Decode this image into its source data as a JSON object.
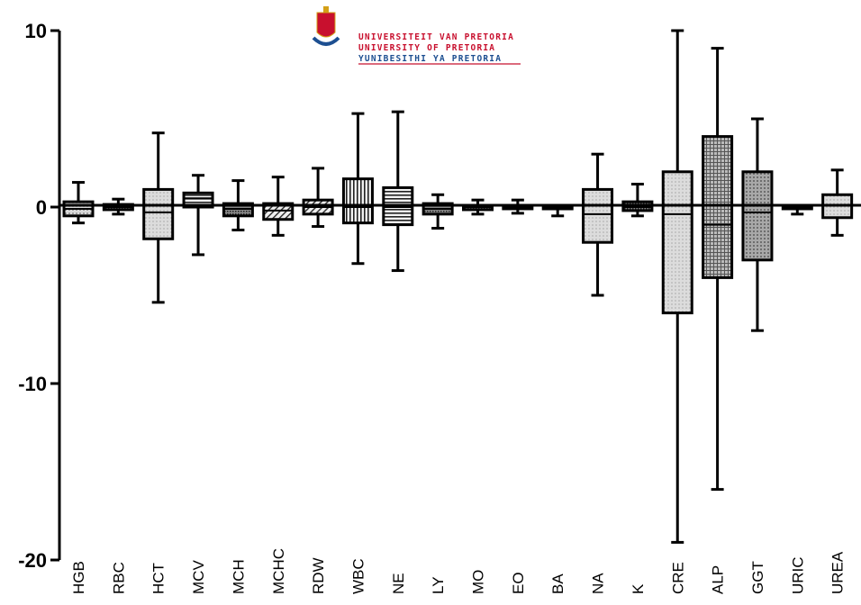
{
  "logo": {
    "lines": [
      "UNIVERSITEIT VAN PRETORIA",
      "UNIVERSITY OF PRETORIA",
      "YUNIBESITHI YA PRETORIA"
    ],
    "colors": {
      "red": "#c8102e",
      "blue": "#1d4f91",
      "gold": "#d4a017"
    }
  },
  "chart_data": {
    "type": "boxplot",
    "title": "",
    "xlabel": "",
    "ylabel": "",
    "ylim": [
      -20,
      10
    ],
    "yticks": [
      "10",
      "0",
      "-10",
      "-20"
    ],
    "categories": [
      "HGB",
      "RBC",
      "HCT",
      "MCV",
      "MCH",
      "MCHC",
      "RDW",
      "WBC",
      "NE",
      "LY",
      "MO",
      "EO",
      "BA",
      "NA",
      "K",
      "CRE",
      "ALP",
      "GGT",
      "URIC",
      "UREA"
    ],
    "boxes": [
      {
        "min": -0.9,
        "q1": -0.5,
        "median": -0.1,
        "q3": 0.3,
        "max": 1.4,
        "fill": "dots"
      },
      {
        "min": -0.4,
        "q1": -0.15,
        "median": 0.0,
        "q3": 0.15,
        "max": 0.45,
        "fill": "dense"
      },
      {
        "min": -5.4,
        "q1": -1.8,
        "median": -0.3,
        "q3": 1.0,
        "max": 4.2,
        "fill": "light-dots"
      },
      {
        "min": -2.7,
        "q1": 0.0,
        "median": 0.5,
        "q3": 0.8,
        "max": 1.8,
        "fill": "hstripes"
      },
      {
        "min": -1.3,
        "q1": -0.5,
        "median": -0.1,
        "q3": 0.2,
        "max": 1.5,
        "fill": "dense"
      },
      {
        "min": -1.6,
        "q1": -0.7,
        "median": -0.2,
        "q3": 0.2,
        "max": 1.7,
        "fill": "diagonal"
      },
      {
        "min": -1.1,
        "q1": -0.4,
        "median": 0.0,
        "q3": 0.4,
        "max": 2.2,
        "fill": "diagonal"
      },
      {
        "min": -3.2,
        "q1": -0.9,
        "median": 0.0,
        "q3": 1.6,
        "max": 5.3,
        "fill": "vstripes"
      },
      {
        "min": -3.6,
        "q1": -1.0,
        "median": 0.0,
        "q3": 1.1,
        "max": 5.4,
        "fill": "hstripes"
      },
      {
        "min": -1.2,
        "q1": -0.4,
        "median": -0.1,
        "q3": 0.2,
        "max": 0.7,
        "fill": "dense"
      },
      {
        "min": -0.4,
        "q1": -0.15,
        "median": 0.0,
        "q3": 0.1,
        "max": 0.4,
        "fill": "dense"
      },
      {
        "min": -0.35,
        "q1": -0.1,
        "median": 0.0,
        "q3": 0.1,
        "max": 0.4,
        "fill": "dense"
      },
      {
        "min": -0.5,
        "q1": -0.05,
        "median": 0.0,
        "q3": 0.0,
        "max": 0.0,
        "fill": "dense"
      },
      {
        "min": -5.0,
        "q1": -2.0,
        "median": -0.4,
        "q3": 1.0,
        "max": 3.0,
        "fill": "light-dots"
      },
      {
        "min": -0.5,
        "q1": -0.2,
        "median": 0.0,
        "q3": 0.3,
        "max": 1.3,
        "fill": "dense"
      },
      {
        "min": -19.0,
        "q1": -6.0,
        "median": -0.4,
        "q3": 2.0,
        "max": 10.0,
        "fill": "light-dots"
      },
      {
        "min": -16.0,
        "q1": -4.0,
        "median": -1.0,
        "q3": 4.0,
        "max": 9.0,
        "fill": "grid"
      },
      {
        "min": -7.0,
        "q1": -3.0,
        "median": -0.3,
        "q3": 2.0,
        "max": 5.0,
        "fill": "dark-dots"
      },
      {
        "min": -0.4,
        "q1": -0.1,
        "median": 0.0,
        "q3": 0.1,
        "max": 0.1,
        "fill": "dense"
      },
      {
        "min": -1.6,
        "q1": -0.6,
        "median": 0.1,
        "q3": 0.7,
        "max": 2.1,
        "fill": "light-dots"
      }
    ],
    "grid": false,
    "legend": "none"
  }
}
